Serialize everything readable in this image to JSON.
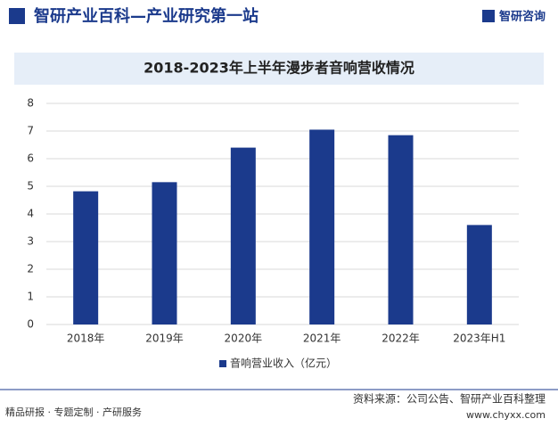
{
  "header": {
    "title": "智研产业百科—产业研究第一站",
    "logo": "智研咨询"
  },
  "chart_data": {
    "type": "bar",
    "title": "2018-2023年上半年漫步者音响营收情况",
    "categories": [
      "2018年",
      "2019年",
      "2020年",
      "2021年",
      "2022年",
      "2023年H1"
    ],
    "series": [
      {
        "name": "音响营业收入（亿元）",
        "color": "#1b3a8c",
        "values": [
          4.82,
          5.15,
          6.4,
          7.05,
          6.85,
          3.6
        ]
      }
    ],
    "ylim": [
      0,
      8
    ],
    "yticks": [
      0,
      1,
      2,
      3,
      4,
      5,
      6,
      7,
      8
    ],
    "grid": true,
    "legend": "bottom"
  },
  "footer": {
    "source": "资料来源：公司公告、智研产业百科整理",
    "services": "精品研报 · 专题定制 · 产研服务",
    "url": "www.chyxx.com"
  }
}
